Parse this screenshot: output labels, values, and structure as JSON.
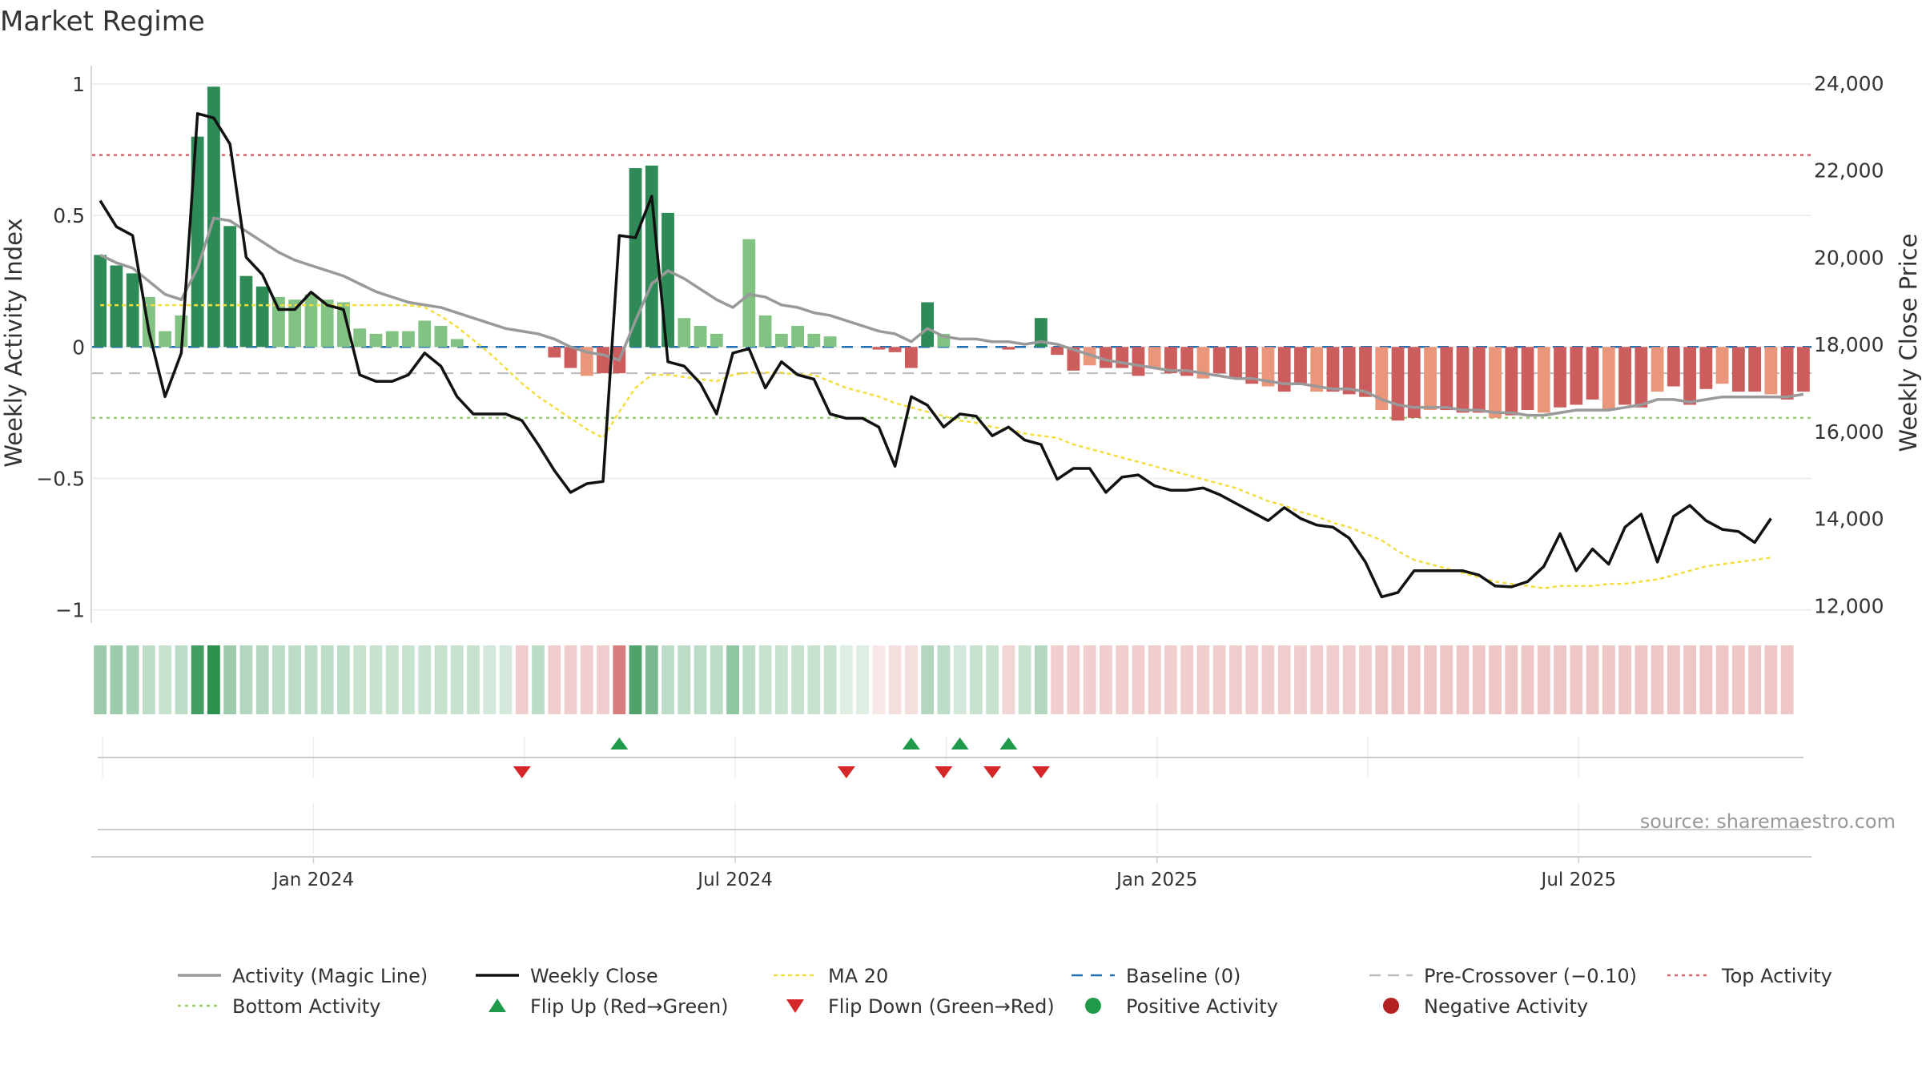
{
  "chart_data": {
    "type": "bar",
    "title": "Market Regime",
    "ylabel_left": "Weekly Activity Index",
    "ylabel_right": "Weekly Close Price",
    "ylim_left": [
      -1.05,
      1.07
    ],
    "ylim_right": [
      11600,
      24400
    ],
    "left_ticks": [
      1,
      0.5,
      0,
      -0.5,
      -1
    ],
    "left_tick_labels": [
      "1",
      "0.5",
      "0",
      "−0.5",
      "−1"
    ],
    "right_ticks": [
      24000,
      22000,
      20000,
      18000,
      16000,
      14000,
      12000
    ],
    "right_tick_labels": [
      "24,000",
      "22,000",
      "20,000",
      "18,000",
      "16,000",
      "14,000",
      "12,000"
    ],
    "x_tick_labels": [
      "Jan 2024",
      "Jul 2024",
      "Jan 2025",
      "Jul 2025"
    ],
    "x_tick_weeks": [
      14,
      40,
      66,
      92
    ],
    "source_text": "source: sharemaestro.com",
    "thresholds": {
      "top": 0.73,
      "bottom": -0.27,
      "pre_crossover": -0.1,
      "baseline": 0
    },
    "colors": {
      "pos_strong": "#2e8b57",
      "pos_light": "#82c282",
      "neg_strong": "#cd5c5c",
      "neg_light": "#e9967a",
      "magic": "#999999",
      "close": "#111111",
      "ma": "#f2de3c",
      "baseline": "#1f6fb4",
      "pre": "#bbbbbb",
      "top": "#d9606e",
      "bottom": "#9acd6e",
      "flip_up": "#1f9a4a",
      "flip_down": "#d62728",
      "pos_dot": "#1f9a4a",
      "neg_dot": "#b22222"
    },
    "activity": [
      0.35,
      0.31,
      0.28,
      0.19,
      0.06,
      0.12,
      0.8,
      0.99,
      0.46,
      0.27,
      0.23,
      0.19,
      0.18,
      0.2,
      0.18,
      0.17,
      0.07,
      0.05,
      0.06,
      0.06,
      0.1,
      0.08,
      0.03,
      0.0,
      0.0,
      0.0,
      0.0,
      0.0,
      -0.04,
      -0.08,
      -0.11,
      -0.1,
      -0.1,
      0.68,
      0.69,
      0.51,
      0.11,
      0.08,
      0.05,
      0.0,
      0.41,
      0.12,
      0.05,
      0.08,
      0.05,
      0.04,
      0.0,
      0.0,
      -0.01,
      -0.02,
      -0.08,
      0.17,
      0.05,
      0.0,
      0.0,
      0.0,
      -0.01,
      0.0,
      0.11,
      -0.03,
      -0.09,
      -0.07,
      -0.08,
      -0.08,
      -0.11,
      -0.08,
      -0.1,
      -0.11,
      -0.12,
      -0.1,
      -0.12,
      -0.14,
      -0.15,
      -0.17,
      -0.14,
      -0.17,
      -0.17,
      -0.18,
      -0.19,
      -0.24,
      -0.28,
      -0.27,
      -0.24,
      -0.24,
      -0.25,
      -0.25,
      -0.27,
      -0.26,
      -0.24,
      -0.25,
      -0.23,
      -0.22,
      -0.2,
      -0.24,
      -0.22,
      -0.23,
      -0.17,
      -0.15,
      -0.22,
      -0.16,
      -0.14,
      -0.17,
      -0.17,
      -0.18,
      -0.2,
      -0.17
    ],
    "magic_line": [
      0.35,
      0.32,
      0.3,
      0.25,
      0.2,
      0.18,
      0.3,
      0.49,
      0.48,
      0.44,
      0.4,
      0.36,
      0.33,
      0.31,
      0.29,
      0.27,
      0.24,
      0.21,
      0.19,
      0.17,
      0.16,
      0.15,
      0.13,
      0.11,
      0.09,
      0.07,
      0.06,
      0.05,
      0.03,
      0.0,
      -0.02,
      -0.03,
      -0.05,
      0.1,
      0.24,
      0.29,
      0.26,
      0.22,
      0.18,
      0.15,
      0.2,
      0.19,
      0.16,
      0.15,
      0.13,
      0.12,
      0.1,
      0.08,
      0.06,
      0.05,
      0.02,
      0.07,
      0.04,
      0.03,
      0.03,
      0.02,
      0.02,
      0.01,
      0.02,
      0.01,
      -0.01,
      -0.03,
      -0.05,
      -0.06,
      -0.07,
      -0.08,
      -0.09,
      -0.09,
      -0.1,
      -0.11,
      -0.12,
      -0.12,
      -0.13,
      -0.14,
      -0.14,
      -0.15,
      -0.16,
      -0.16,
      -0.17,
      -0.2,
      -0.22,
      -0.23,
      -0.23,
      -0.23,
      -0.24,
      -0.24,
      -0.25,
      -0.25,
      -0.26,
      -0.26,
      -0.25,
      -0.24,
      -0.24,
      -0.24,
      -0.23,
      -0.22,
      -0.2,
      -0.2,
      -0.21,
      -0.2,
      -0.19,
      -0.19,
      -0.19,
      -0.19,
      -0.19,
      -0.18
    ],
    "weekly_close": [
      21300,
      20700,
      20500,
      18300,
      16800,
      17800,
      23300,
      23200,
      22600,
      20000,
      19600,
      18800,
      18800,
      19200,
      18900,
      18800,
      17300,
      17150,
      17150,
      17300,
      17800,
      17500,
      16800,
      16400,
      16400,
      16400,
      16250,
      15700,
      15100,
      14600,
      14800,
      14850,
      20500,
      20450,
      21400,
      17600,
      17500,
      17100,
      16400,
      17800,
      17900,
      17000,
      17600,
      17300,
      17200,
      16400,
      16300,
      16300,
      16100,
      15200,
      16800,
      16600,
      16100,
      16400,
      16350,
      15900,
      16100,
      15800,
      15700,
      14900,
      15150,
      15150,
      14600,
      14950,
      15000,
      14750,
      14650,
      14650,
      14700,
      14550,
      14350,
      14150,
      13950,
      14250,
      14000,
      13850,
      13800,
      13550,
      13000,
      12200,
      12300,
      12800,
      12800,
      12800,
      12800,
      12700,
      12450,
      12430,
      12550,
      12900,
      13650,
      12800,
      13300,
      12950,
      13800,
      14100,
      13000,
      14050,
      14300,
      13950,
      13750,
      13700,
      13450,
      14000
    ],
    "ma20": [
      18900,
      18900,
      18900,
      18900,
      18900,
      18900,
      18900,
      18900,
      18900,
      18900,
      18900,
      18900,
      18900,
      18900,
      18900,
      18900,
      18900,
      18900,
      18900,
      18900,
      18850,
      18650,
      18400,
      18100,
      17800,
      17450,
      17100,
      16800,
      16550,
      16300,
      16050,
      15850,
      16450,
      17000,
      17300,
      17300,
      17250,
      17200,
      17150,
      17300,
      17350,
      17350,
      17350,
      17300,
      17300,
      17150,
      17000,
      16900,
      16800,
      16650,
      16550,
      16450,
      16350,
      16250,
      16200,
      16100,
      16050,
      15950,
      15900,
      15850,
      15700,
      15600,
      15500,
      15400,
      15300,
      15200,
      15100,
      15000,
      14900,
      14800,
      14700,
      14550,
      14400,
      14300,
      14150,
      14050,
      13900,
      13800,
      13650,
      13500,
      13250,
      13050,
      12950,
      12850,
      12750,
      12650,
      12550,
      12500,
      12450,
      12400,
      12450,
      12450,
      12450,
      12500,
      12500,
      12550,
      12600,
      12700,
      12800,
      12900,
      12950,
      13000,
      13050,
      13100
    ],
    "strip_strength": [
      0.45,
      0.45,
      0.4,
      0.3,
      0.25,
      0.3,
      0.85,
      0.95,
      0.45,
      0.35,
      0.35,
      0.3,
      0.3,
      0.3,
      0.3,
      0.3,
      0.25,
      0.25,
      0.25,
      0.25,
      0.25,
      0.25,
      0.25,
      0.25,
      0.2,
      0.2,
      0.3,
      0.3,
      0.3,
      0.3,
      0.3,
      0.3,
      0.8,
      0.8,
      0.6,
      0.3,
      0.3,
      0.3,
      0.3,
      0.5,
      0.3,
      0.25,
      0.25,
      0.25,
      0.25,
      0.25,
      0.15,
      0.15,
      0.15,
      0.2,
      0.2,
      0.35,
      0.3,
      0.2,
      0.25,
      0.25,
      0.25,
      0.25,
      0.35,
      0.3,
      0.3,
      0.3,
      0.3,
      0.3,
      0.3,
      0.3,
      0.3,
      0.3,
      0.3,
      0.3,
      0.3,
      0.3,
      0.3,
      0.3,
      0.3,
      0.3,
      0.3,
      0.3,
      0.3,
      0.35,
      0.35,
      0.35,
      0.35,
      0.35,
      0.35,
      0.35,
      0.35,
      0.35,
      0.35,
      0.35,
      0.35,
      0.35,
      0.35,
      0.35,
      0.35,
      0.35,
      0.35,
      0.35,
      0.35,
      0.35,
      0.35,
      0.35,
      0.35,
      0.35,
      0.35
    ],
    "flip_up_weeks": [
      32,
      50,
      53,
      56
    ],
    "flip_down_weeks": [
      26,
      46,
      52,
      55,
      58
    ],
    "legend": [
      "Activity (Magic Line)",
      "Weekly Close",
      "MA 20",
      "Baseline (0)",
      "Pre-Crossover (−0.10)",
      "Top Activity",
      "Bottom Activity",
      "Flip Up (Red→Green)",
      "Flip Down (Green→Red)",
      "Positive Activity",
      "Negative Activity"
    ]
  }
}
